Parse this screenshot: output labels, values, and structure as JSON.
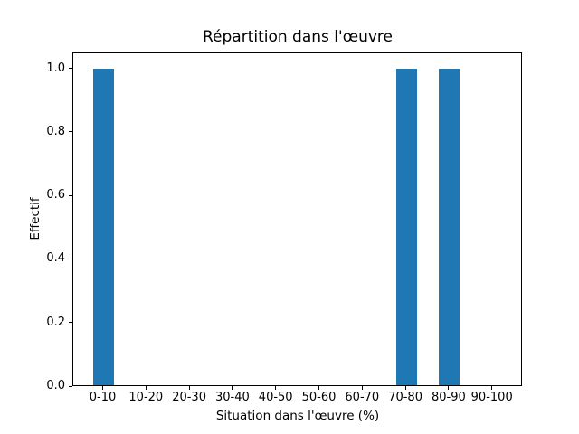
{
  "chart_data": {
    "type": "bar",
    "title": "Répartition dans l'œuvre",
    "xlabel": "Situation dans l'œuvre (%)",
    "ylabel": "Effectif",
    "categories": [
      "0-10",
      "10-20",
      "20-30",
      "30-40",
      "40-50",
      "50-60",
      "60-70",
      "70-80",
      "80-90",
      "90-100"
    ],
    "values": [
      1,
      0,
      0,
      0,
      0,
      0,
      0,
      1,
      1,
      0
    ],
    "yticks": [
      "0.0",
      "0.2",
      "0.4",
      "0.6",
      "0.8",
      "1.0"
    ],
    "ylim": [
      0,
      1.05
    ],
    "grid": false,
    "legend": null,
    "colors": {
      "bar": "#1f77b4",
      "spine": "#000000",
      "text": "#000000",
      "background": "#ffffff"
    }
  }
}
